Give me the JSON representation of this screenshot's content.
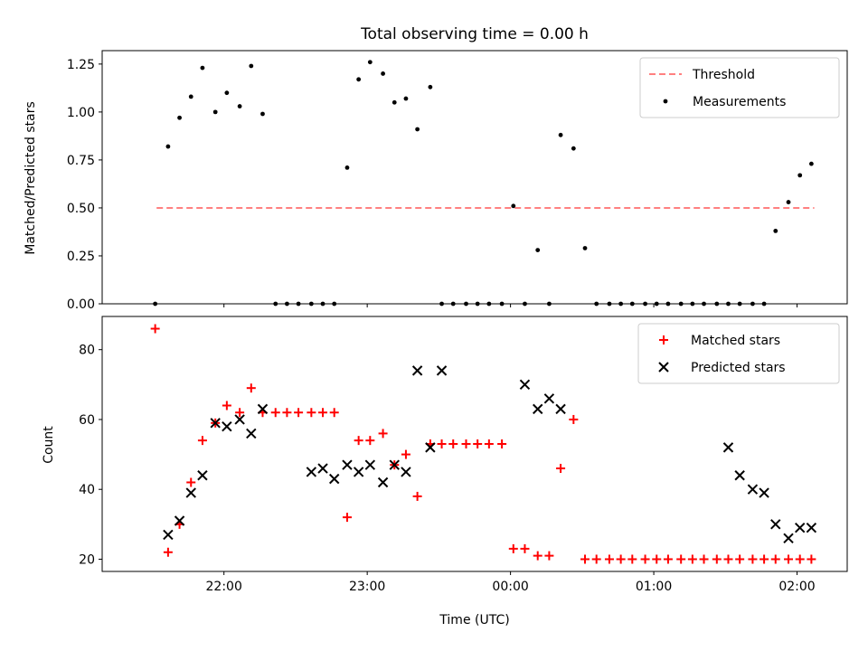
{
  "chart_data": [
    {
      "type": "scatter",
      "title": "Total observing time = 0.00 h",
      "xlabel": "",
      "ylabel": "Matched/Predicted stars",
      "xlim": [
        21.15,
        26.35
      ],
      "ylim": [
        0,
        1.32
      ],
      "yticks": [
        0.0,
        0.25,
        0.5,
        0.75,
        1.0,
        1.25
      ],
      "ytick_labels": [
        "0.00",
        "0.25",
        "0.50",
        "0.75",
        "1.00",
        "1.25"
      ],
      "xticks": [
        22,
        23,
        24,
        25,
        26
      ],
      "xtick_labels": [
        "",
        "",
        "",
        "",
        ""
      ],
      "grid": false,
      "legend": {
        "placement": "top-right",
        "entries": [
          {
            "label": "Threshold",
            "marker": "dashed-line",
            "color": "#ff8080"
          },
          {
            "label": "Measurements",
            "marker": "dot",
            "color": "#000000"
          }
        ]
      },
      "series": [
        {
          "name": "Threshold",
          "kind": "line",
          "color": "#ff8080",
          "x": [
            21.53,
            26.12
          ],
          "y": [
            0.5,
            0.5
          ]
        },
        {
          "name": "Measurements",
          "kind": "dot",
          "color": "#000000",
          "x": [
            21.52,
            21.61,
            21.69,
            21.77,
            21.85,
            21.94,
            22.02,
            22.11,
            22.19,
            22.27,
            22.36,
            22.44,
            22.52,
            22.61,
            22.69,
            22.77,
            22.86,
            22.94,
            23.02,
            23.11,
            23.19,
            23.27,
            23.35,
            23.44,
            23.52,
            23.6,
            23.69,
            23.77,
            23.85,
            23.94,
            24.02,
            24.1,
            24.19,
            24.27,
            24.35,
            24.44,
            24.52,
            24.6,
            24.69,
            24.77,
            24.85,
            24.94,
            25.02,
            25.1,
            25.19,
            25.27,
            25.35,
            25.44,
            25.52,
            25.6,
            25.69,
            25.77,
            25.85,
            25.94,
            26.02,
            26.1
          ],
          "y": [
            0.0,
            0.82,
            0.97,
            1.08,
            1.23,
            1.0,
            1.1,
            1.03,
            1.24,
            0.99,
            0.0,
            0.0,
            0.0,
            0.0,
            0.0,
            0.0,
            0.71,
            1.17,
            1.26,
            1.2,
            1.05,
            1.07,
            0.91,
            1.13,
            0.0,
            0.0,
            0.0,
            0.0,
            0.0,
            0.0,
            0.51,
            0.0,
            0.28,
            0.0,
            0.88,
            0.81,
            0.29,
            0.0,
            0.0,
            0.0,
            0.0,
            0.0,
            0.0,
            0.0,
            0.0,
            0.0,
            0.0,
            0.0,
            0.0,
            0.0,
            0.0,
            0.0,
            0.38,
            0.53,
            0.67,
            0.73
          ]
        }
      ]
    },
    {
      "type": "scatter",
      "title": "",
      "xlabel": "Time (UTC)",
      "ylabel": "Count",
      "xlim": [
        21.15,
        26.35
      ],
      "ylim": [
        16.5,
        89.5
      ],
      "yticks": [
        20,
        40,
        60,
        80
      ],
      "ytick_labels": [
        "20",
        "40",
        "60",
        "80"
      ],
      "xticks": [
        22,
        23,
        24,
        25,
        26
      ],
      "xtick_labels": [
        "22:00",
        "23:00",
        "00:00",
        "01:00",
        "02:00"
      ],
      "grid": false,
      "legend": {
        "placement": "top-right",
        "entries": [
          {
            "label": "Matched stars",
            "marker": "plus",
            "color": "#ff0000"
          },
          {
            "label": "Predicted stars",
            "marker": "x",
            "color": "#000000"
          }
        ]
      },
      "series": [
        {
          "name": "Matched stars",
          "kind": "plus",
          "color": "#ff0000",
          "x": [
            21.52,
            21.61,
            21.69,
            21.77,
            21.85,
            21.94,
            22.02,
            22.11,
            22.19,
            22.27,
            22.36,
            22.44,
            22.52,
            22.61,
            22.69,
            22.77,
            22.86,
            22.94,
            23.02,
            23.11,
            23.19,
            23.27,
            23.35,
            23.44,
            23.52,
            23.6,
            23.69,
            23.77,
            23.85,
            23.94,
            24.02,
            24.1,
            24.19,
            24.27,
            24.35,
            24.44,
            24.52,
            24.6,
            24.69,
            24.77,
            24.85,
            24.94,
            25.02,
            25.1,
            25.19,
            25.27,
            25.35,
            25.44,
            25.52,
            25.6,
            25.69,
            25.77,
            25.85,
            25.94,
            26.02,
            26.1
          ],
          "y": [
            86,
            22,
            30,
            42,
            54,
            59,
            64,
            62,
            69,
            62,
            62,
            62,
            62,
            62,
            62,
            62,
            32,
            54,
            54,
            56,
            47,
            50,
            38,
            53,
            53,
            53,
            53,
            53,
            53,
            53,
            23,
            23,
            21,
            21,
            46,
            60,
            20,
            20,
            20,
            20,
            20,
            20,
            20,
            20,
            20,
            20,
            20,
            20,
            20,
            20,
            20,
            20,
            20,
            20,
            20,
            20
          ]
        },
        {
          "name": "Predicted stars",
          "kind": "x",
          "color": "#000000",
          "x": [
            21.61,
            21.69,
            21.77,
            21.85,
            21.94,
            22.02,
            22.11,
            22.19,
            22.27,
            22.61,
            22.69,
            22.77,
            22.86,
            22.94,
            23.02,
            23.11,
            23.19,
            23.27,
            23.35,
            23.44,
            23.52,
            24.1,
            24.19,
            24.27,
            24.35,
            25.52,
            25.6,
            25.69,
            25.77,
            25.85,
            25.94,
            26.02,
            26.1
          ],
          "y": [
            27,
            31,
            39,
            44,
            59,
            58,
            60,
            56,
            63,
            45,
            46,
            43,
            47,
            45,
            47,
            42,
            47,
            45,
            74,
            52,
            74,
            70,
            63,
            66,
            63,
            52,
            44,
            40,
            39,
            30,
            26,
            29,
            29
          ]
        }
      ]
    }
  ]
}
